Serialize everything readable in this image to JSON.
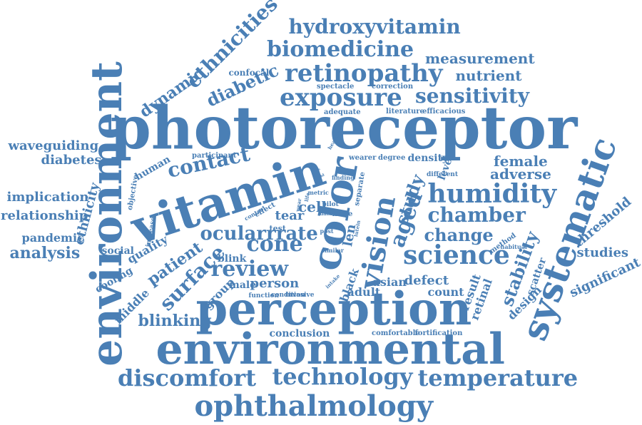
{
  "word_color": "#4a7fb5",
  "words": [
    {
      "text": "photoreceptor",
      "rot": 0
    },
    {
      "text": "perception",
      "rot": 0
    },
    {
      "text": "environmental",
      "rot": 0
    },
    {
      "text": "vitamin",
      "rot": -18
    },
    {
      "text": "environment",
      "rot": -90
    },
    {
      "text": "color",
      "rot": -80
    },
    {
      "text": "systematic",
      "rot": -70
    },
    {
      "text": "ophthalmology",
      "rot": 0
    },
    {
      "text": "exposure",
      "rot": 0
    },
    {
      "text": "retinopathy",
      "rot": 0
    },
    {
      "text": "biomedicine",
      "rot": 0
    },
    {
      "text": "hydroxyvitamin",
      "rot": 0
    },
    {
      "text": "technology",
      "rot": 0
    },
    {
      "text": "temperature",
      "rot": 0
    },
    {
      "text": "discomfort",
      "rot": 0
    },
    {
      "text": "science",
      "rot": 0
    },
    {
      "text": "humidity",
      "rot": 0
    },
    {
      "text": "vision",
      "rot": -80
    },
    {
      "text": "contact",
      "rot": -12
    },
    {
      "text": "sensitivity",
      "rot": 0
    },
    {
      "text": "ocularrrate",
      "rot": 0
    },
    {
      "text": "chamber",
      "rot": 0
    },
    {
      "text": "review",
      "rot": 0
    },
    {
      "text": "cone",
      "rot": 0
    },
    {
      "text": "ethnicities",
      "rot": -45
    },
    {
      "text": "diabetic",
      "rot": -25
    },
    {
      "text": "dynamic",
      "rot": -35
    },
    {
      "text": "change",
      "rot": 0
    },
    {
      "text": "aged",
      "rot": -70
    },
    {
      "text": "study",
      "rot": -70
    },
    {
      "text": "surface",
      "rot": -45
    },
    {
      "text": "patient",
      "rot": -35
    },
    {
      "text": "blinking",
      "rot": 0
    },
    {
      "text": "measurement",
      "rot": 0
    },
    {
      "text": "nutrient",
      "rot": 0
    },
    {
      "text": "female",
      "rot": 0
    },
    {
      "text": "adverse",
      "rot": 0
    },
    {
      "text": "waveguiding",
      "rot": 0
    },
    {
      "text": "diabetes",
      "rot": 0
    },
    {
      "text": "implication",
      "rot": 0
    },
    {
      "text": "relationship",
      "rot": 0
    },
    {
      "text": "pandemic",
      "rot": 0
    },
    {
      "text": "analysis",
      "rot": 0
    },
    {
      "text": "ethnicity",
      "rot": -75
    },
    {
      "text": "stability",
      "rot": -70
    },
    {
      "text": "threshold",
      "rot": -40
    },
    {
      "text": "studies",
      "rot": 0
    },
    {
      "text": "significant",
      "rot": -25
    },
    {
      "text": "conclusion",
      "rot": 0
    },
    {
      "text": "person",
      "rot": 0
    },
    {
      "text": "defect",
      "rot": 0
    },
    {
      "text": "human",
      "rot": -30
    },
    {
      "text": "quality",
      "rot": -30
    },
    {
      "text": "middle",
      "rot": -45
    },
    {
      "text": "group",
      "rot": -45
    },
    {
      "text": "design",
      "rot": -45
    },
    {
      "text": "retinal",
      "rot": -70
    },
    {
      "text": "result",
      "rot": -70
    },
    {
      "text": "count",
      "rot": 0
    },
    {
      "text": "asian",
      "rot": 0
    },
    {
      "text": "adult",
      "rot": 0
    },
    {
      "text": "black",
      "rot": -70
    },
    {
      "text": "len",
      "rot": -80
    },
    {
      "text": "cell",
      "rot": 0
    },
    {
      "text": "tear",
      "rot": 0
    },
    {
      "text": "social",
      "rot": 0
    },
    {
      "text": "cooling",
      "rot": -30
    },
    {
      "text": "blink",
      "rot": 0
    },
    {
      "text": "male",
      "rot": 0
    },
    {
      "text": "density",
      "rot": 0
    },
    {
      "text": "level",
      "rot": -70
    },
    {
      "text": "confocal",
      "rot": 0
    },
    {
      "text": "spectacle",
      "rot": 0
    },
    {
      "text": "correction",
      "rot": 0
    },
    {
      "text": "adequate",
      "rot": 0
    },
    {
      "text": "literature",
      "rot": 0
    },
    {
      "text": "efficacious",
      "rot": 0
    },
    {
      "text": "participant",
      "rot": 0
    },
    {
      "text": "wearer",
      "rot": 0
    },
    {
      "text": "degree",
      "rot": 0
    },
    {
      "text": "different",
      "rot": 0
    },
    {
      "text": "objective",
      "rot": -80
    },
    {
      "text": "increase",
      "rot": -80
    },
    {
      "text": "control",
      "rot": -30
    },
    {
      "text": "effect",
      "rot": -30
    },
    {
      "text": "test",
      "rot": 0
    },
    {
      "text": "condition",
      "rot": 0
    },
    {
      "text": "pilot",
      "rot": 0
    },
    {
      "text": "finding",
      "rot": 0
    },
    {
      "text": "metric",
      "rot": 0
    },
    {
      "text": "more",
      "rot": 0
    },
    {
      "text": "data",
      "rot": 0
    },
    {
      "text": "separate",
      "rot": -80
    },
    {
      "text": "post",
      "rot": 0
    },
    {
      "text": "similar",
      "rot": 0
    },
    {
      "text": "habitual",
      "rot": 0
    },
    {
      "text": "method",
      "rot": -35
    },
    {
      "text": "scatter",
      "rot": -70
    },
    {
      "text": "function",
      "rot": 0
    },
    {
      "text": "invasive",
      "rot": 0
    },
    {
      "text": "intake",
      "rot": -45
    },
    {
      "text": "comfortable",
      "rot": 0
    },
    {
      "text": "fortification",
      "rot": 0
    },
    {
      "text": "healthy",
      "rot": -60
    },
    {
      "text": "life",
      "rot": -80
    },
    {
      "text": "wear",
      "rot": -80
    },
    {
      "text": "type",
      "rot": 0
    },
    {
      "text": "acid",
      "rot": -30
    },
    {
      "text": "lutein",
      "rot": -80
    }
  ]
}
